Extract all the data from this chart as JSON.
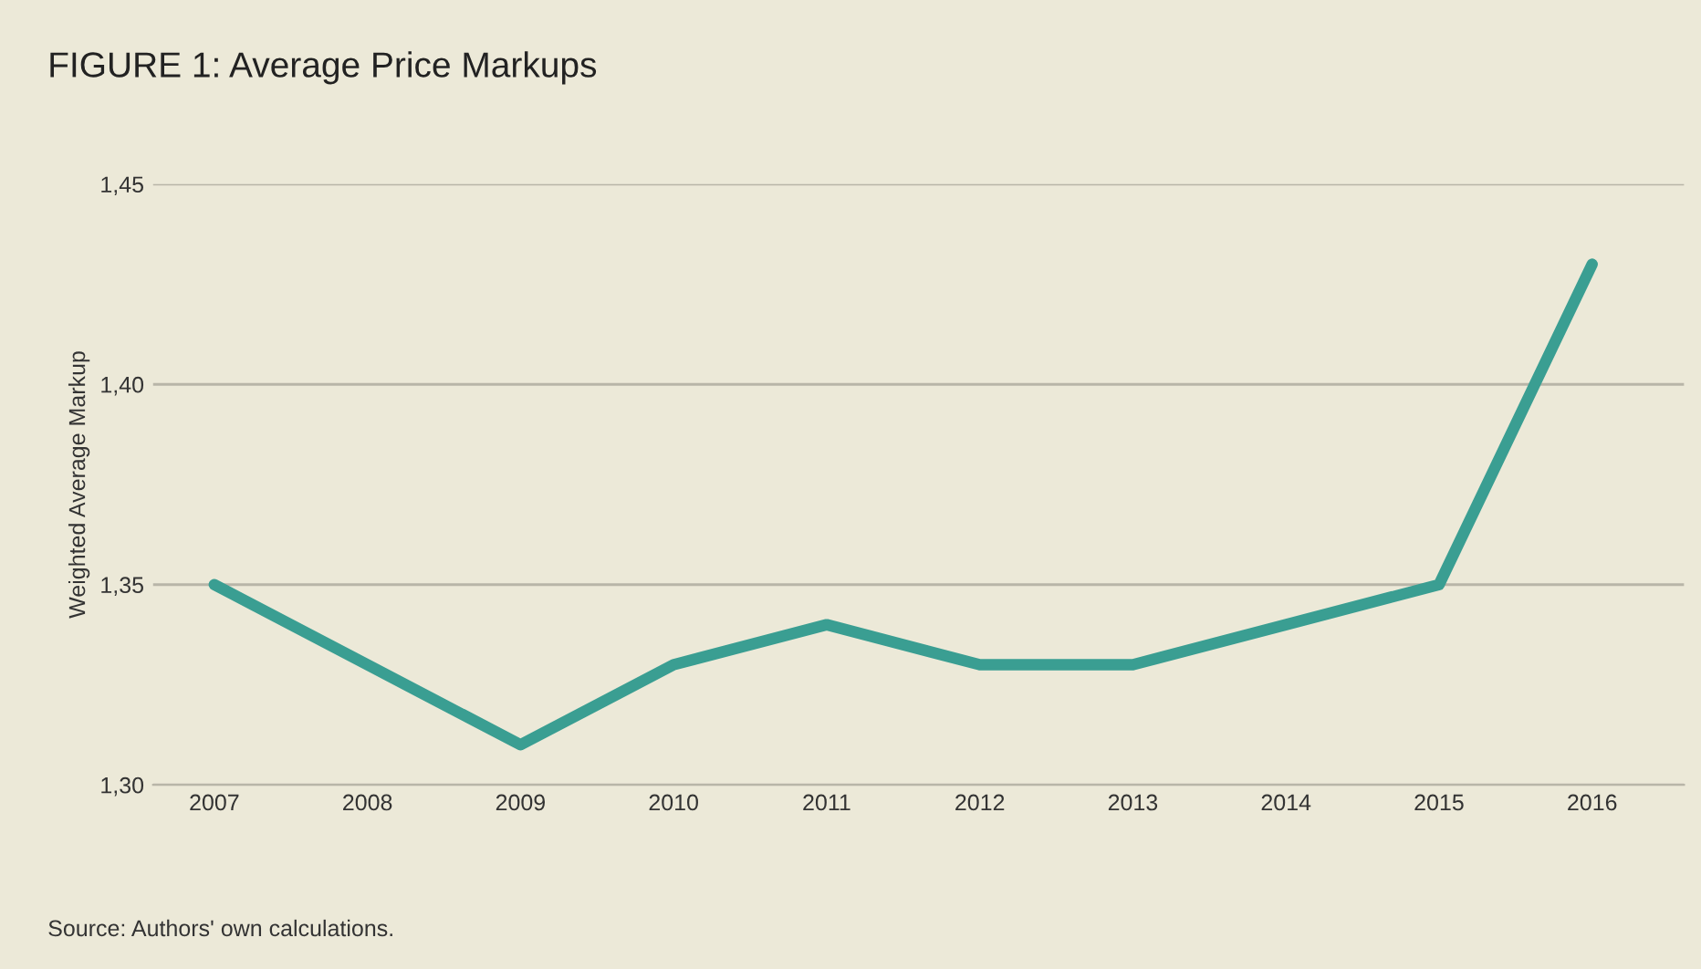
{
  "chart_data": {
    "type": "line",
    "title": "FIGURE 1: Average Price Markups",
    "ylabel": "Weighted Average Markup",
    "categories": [
      "2007",
      "2008",
      "2009",
      "2010",
      "2011",
      "2012",
      "2013",
      "2014",
      "2015",
      "2016"
    ],
    "series": [
      {
        "color": "#3a9e92",
        "values": [
          1.35,
          1.33,
          1.31,
          1.33,
          1.34,
          1.33,
          1.33,
          1.34,
          1.35,
          1.43
        ]
      }
    ],
    "ylim": [
      1.3,
      1.45
    ],
    "yticks": [
      {
        "value": 1.3,
        "label": "1,30"
      },
      {
        "value": 1.35,
        "label": "1,35"
      },
      {
        "value": 1.4,
        "label": "1,40"
      },
      {
        "value": 1.45,
        "label": "1,45"
      }
    ],
    "grid": "y",
    "marker": "none",
    "line_style": "solid",
    "annotations": [
      "Source: Authors' own calculations."
    ]
  }
}
